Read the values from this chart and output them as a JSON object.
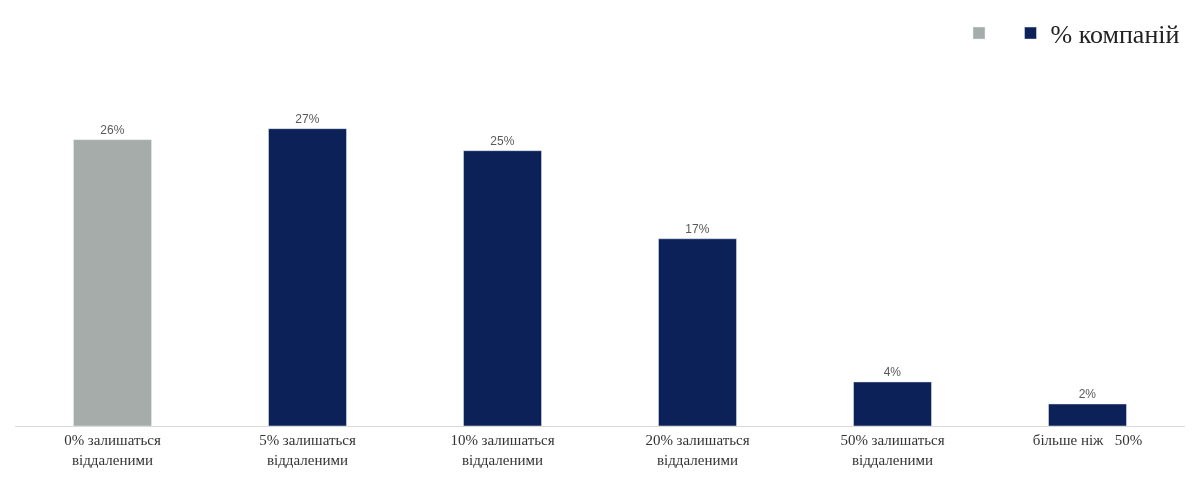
{
  "chart_data": {
    "type": "bar",
    "categories": [
      "0% залишаться\nвіддаленими",
      "5% залишаться\nвіддаленими",
      "10% залишаться\nвіддаленими",
      "20% залишаться\nвіддаленими",
      "50% залишаться\nвіддаленими",
      "більше ніж   50%"
    ],
    "series": [
      {
        "name": "% компаній",
        "colors": [
          "#a5acaa",
          "#0b2158",
          "#0b2158",
          "#0b2158",
          "#0b2158",
          "#0b2158"
        ],
        "values": [
          26,
          27,
          25,
          17,
          4,
          2
        ],
        "value_labels": [
          "26%",
          "27%",
          "25%",
          "17%",
          "4%",
          "2%"
        ]
      }
    ],
    "tick_labels": "x",
    "legend": "top right"
  }
}
